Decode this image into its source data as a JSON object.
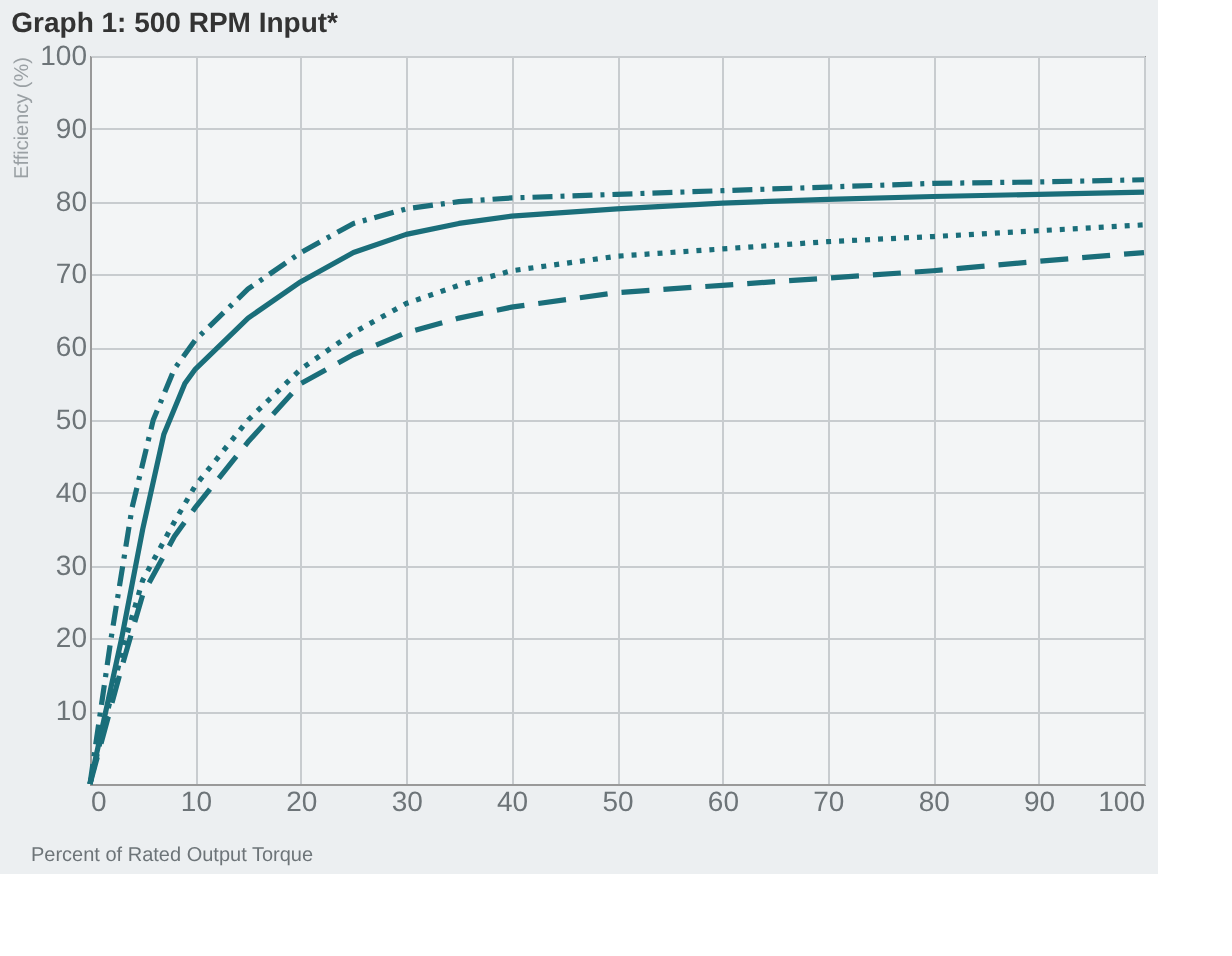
{
  "chart_data": {
    "type": "line",
    "title": "Graph 1:  500 RPM Input*",
    "xlabel": "Percent of Rated Output Torque",
    "ylabel": "Efficiency (%)",
    "grid": true,
    "marker": "none",
    "xlim": [
      0,
      100
    ],
    "xticks": [
      0,
      10,
      20,
      30,
      40,
      50,
      60,
      70,
      80,
      90,
      100
    ],
    "ylim": [
      0,
      100
    ],
    "yticks": [
      {
        "value": 0,
        "label": null
      },
      10,
      20,
      30,
      40,
      50,
      60,
      70,
      80,
      90,
      100
    ],
    "series": [
      {
        "color": "#1a6e7a",
        "line_style": "dashdot",
        "x": [
          0,
          2,
          4,
          6,
          8,
          10,
          15,
          20,
          25,
          30,
          35,
          40,
          50,
          60,
          70,
          80,
          90,
          100
        ],
        "values": [
          0,
          20,
          38,
          50,
          57,
          61,
          68,
          73,
          77,
          79,
          80,
          80.5,
          81,
          81.5,
          82,
          82.5,
          82.7,
          83
        ]
      },
      {
        "color": "#1a6e7a",
        "line_style": "solid",
        "x": [
          0,
          3,
          5,
          7,
          9,
          10,
          15,
          20,
          25,
          30,
          35,
          40,
          50,
          60,
          70,
          80,
          90,
          100
        ],
        "values": [
          0,
          20,
          35,
          48,
          55,
          57,
          64,
          69,
          73,
          75.5,
          77,
          78,
          79,
          79.8,
          80.3,
          80.7,
          81,
          81.3
        ]
      },
      {
        "color": "#1a6e7a",
        "line_style": "dotted",
        "x": [
          0,
          3,
          5,
          8,
          10,
          15,
          20,
          25,
          30,
          35,
          40,
          50,
          60,
          70,
          80,
          90,
          100
        ],
        "values": [
          0,
          18,
          28,
          36,
          41,
          50,
          57,
          62,
          66,
          68.5,
          70.5,
          72.5,
          73.5,
          74.5,
          75.2,
          76,
          76.8
        ]
      },
      {
        "color": "#1a6e7a",
        "line_style": "dashed",
        "x": [
          0,
          3,
          5,
          8,
          10,
          15,
          20,
          25,
          30,
          35,
          40,
          50,
          60,
          70,
          80,
          90,
          100
        ],
        "values": [
          0,
          16,
          26,
          34,
          38,
          47,
          55,
          59,
          62,
          64,
          65.5,
          67.5,
          68.5,
          69.5,
          70.5,
          71.8,
          73
        ]
      }
    ]
  }
}
